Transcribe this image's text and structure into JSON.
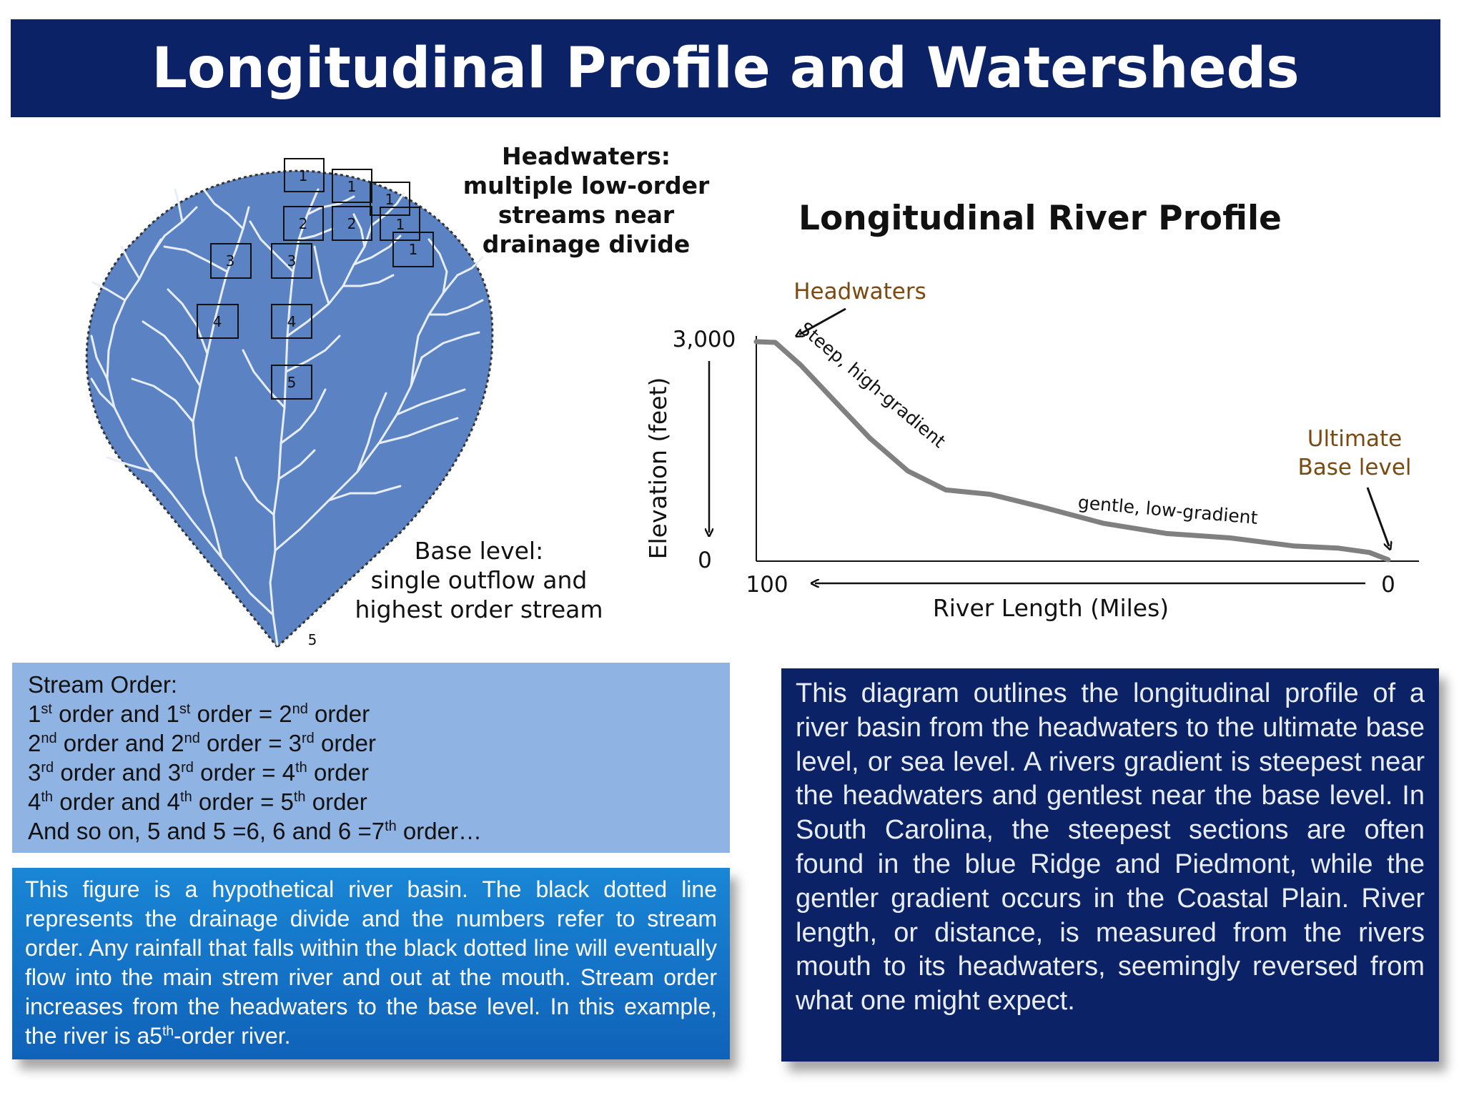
{
  "title": "Longitudinal Profile and Watersheds",
  "basin": {
    "order_labels": [
      "1",
      "1",
      "1",
      "1",
      "1",
      "2",
      "2",
      "3",
      "3",
      "4",
      "4",
      "5"
    ],
    "mouth_label": "5",
    "colors": {
      "basin_fill": "#5b83c4",
      "stream": "#e8eef8",
      "divide": "#333333",
      "box": "#111111"
    }
  },
  "headwaters_note": [
    "Headwaters:",
    "multiple low-order",
    "streams near",
    "drainage divide"
  ],
  "base_level_note": [
    "Base level:",
    "single outflow and",
    "highest order stream"
  ],
  "profile": {
    "title": "Longitudinal River Profile",
    "y_max_label": "3,000",
    "y_min_label": "0",
    "ylabel": "Elevation (feet)",
    "x_left_label": "100",
    "x_right_label": "0",
    "xlabel": "River Length (Miles)",
    "headwaters_label": "Headwaters",
    "ultimate_label": [
      "Ultimate",
      "Base level"
    ],
    "steep_label": "Steep, high-gradient",
    "gentle_label": "gentle, low-gradient",
    "colors": {
      "curve": "#808080",
      "annotation": "#7a4a10"
    }
  },
  "chart_data": {
    "type": "line",
    "xlabel": "River Length (Miles)",
    "ylabel": "Elevation (feet)",
    "xlim": [
      100,
      0
    ],
    "ylim": [
      0,
      3000
    ],
    "series": [
      {
        "values_x": [
          100,
          97,
          93,
          88,
          82,
          76,
          70,
          63,
          55,
          45,
          35,
          25,
          15,
          8,
          3,
          0
        ],
        "values_y": [
          3000,
          2990,
          2680,
          2220,
          1670,
          1220,
          960,
          900,
          730,
          500,
          360,
          300,
          190,
          160,
          100,
          0
        ]
      }
    ]
  },
  "stream_order": {
    "heading": "Stream Order:",
    "lines": [
      {
        "a": "1",
        "a_sup": "st",
        "mid": " order  and 1",
        "b_sup": "st",
        "c": " order = 2",
        "c_sup": "nd",
        "d": " order"
      },
      {
        "a": "2",
        "a_sup": "nd",
        "mid": " order and 2",
        "b_sup": "nd",
        "c": " order = 3",
        "c_sup": "rd",
        "d": " order"
      },
      {
        "a": "3",
        "a_sup": "rd",
        "mid": " order and 3",
        "b_sup": "rd",
        "c": " order = 4",
        "c_sup": "th",
        "d": " order"
      },
      {
        "a": "4",
        "a_sup": "th",
        "mid": " order and 4",
        "b_sup": "th",
        "c": " order = 5",
        "c_sup": "th",
        "d": " order"
      }
    ],
    "last_line": "And so on, 5 and 5 =6, 6 and 6 =7",
    "last_sup": "th",
    "last_tail": " order…"
  },
  "figure_caption": {
    "text": "This figure is a hypothetical river basin. The black dotted line represents the drainage divide and the numbers refer to stream order. Any rainfall that falls within the black dotted line will eventually flow into the main strem river and out at the mouth. Stream order increases from the headwaters to the base level. In this example, the river is a5",
    "sup": "th",
    "tail": "-order river."
  },
  "description": "This diagram outlines the longitudinal profile of a river basin from the headwaters to the ultimate base level, or sea level. A rivers gradient is steepest near the headwaters and gentlest near the base level. In South Carolina, the steepest sections are often found in the blue Ridge and Piedmont, while the gentler gradient occurs in the Coastal Plain. River length, or distance, is measured from the rivers mouth to its headwaters, seemingly reversed from what one might expect."
}
